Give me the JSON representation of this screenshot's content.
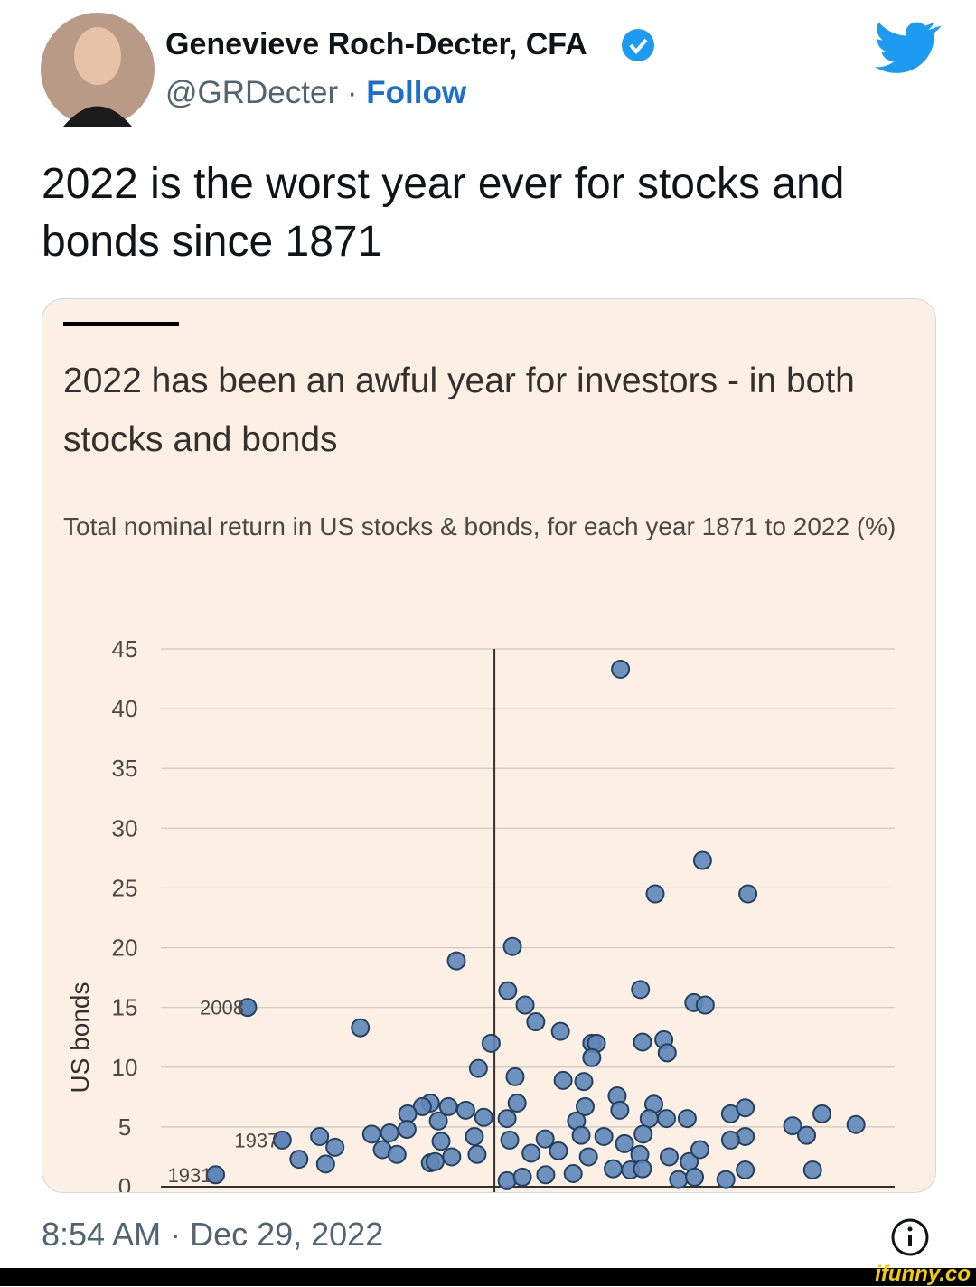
{
  "author": {
    "name": "Genevieve Roch-Decter, CFA",
    "handle": "@GRDecter",
    "separator": "·",
    "follow": "Follow"
  },
  "tweet_text": "2022 is the worst year ever for stocks and bonds since 1871",
  "timestamp": "8:54 AM · Dec 29, 2022",
  "watermark": "ifunny.co",
  "chart_data": {
    "type": "scatter",
    "title": "2022 has been an awful year for investors - in both stocks and bonds",
    "subtitle": "Total nominal return in US stocks & bonds, for each year 1871 to 2022 (%)",
    "y_label": "US bonds",
    "xlim": [
      -50,
      60
    ],
    "ylim": [
      0,
      45
    ],
    "yticks": [
      0,
      5,
      10,
      15,
      20,
      25,
      30,
      35,
      40,
      45
    ],
    "grid": true,
    "color": "#5f86b8",
    "x": [
      18.9,
      31.2,
      24.1,
      38.0,
      2.7,
      -5.7,
      21.9,
      2.0,
      4.6,
      29.9,
      31.6,
      -20.1,
      6.2,
      9.9,
      -0.5,
      14.6,
      15.3,
      22.2,
      25.4,
      25.9,
      14.6,
      -2.4,
      3.1,
      10.3,
      13.4,
      18.4,
      3.4,
      -9.6,
      -6.9,
      -10.8,
      -13.0,
      -8.4,
      -4.3,
      -1.6,
      1.9,
      13.6,
      18.8,
      23.9,
      25.8,
      28.9,
      12.3,
      23.2,
      35.4,
      37.6,
      49.1,
      54.2,
      44.7,
      46.8,
      37.6,
      35.4,
      -26.2,
      -18.4,
      -15.7,
      -13.1,
      -23.9,
      -29.3,
      -25.3,
      -16.8,
      -14.6,
      -9.6,
      -8.9,
      -6.4,
      -8.0,
      -3.0,
      -2.6,
      2.3,
      5.5,
      7.6,
      9.6,
      13.0,
      14.1,
      16.4,
      19.5,
      22.3,
      21.8,
      26.2,
      29.2,
      30.8,
      17.8,
      11.8,
      20.4,
      22.2,
      1.9,
      4.2,
      7.7,
      27.6,
      30.0,
      34.7,
      37.6,
      47.7
    ],
    "values": [
      43.3,
      27.3,
      24.5,
      24.5,
      20.1,
      18.9,
      16.5,
      16.4,
      15.2,
      15.4,
      15.2,
      13.3,
      13.8,
      13.0,
      12.0,
      12.0,
      12.0,
      12.1,
      12.3,
      11.2,
      10.8,
      9.9,
      9.2,
      8.9,
      8.8,
      7.6,
      7.0,
      7.0,
      6.7,
      6.7,
      6.1,
      5.5,
      6.4,
      5.8,
      5.7,
      6.7,
      6.4,
      6.9,
      5.7,
      5.7,
      5.5,
      5.7,
      6.1,
      6.6,
      6.1,
      5.2,
      5.1,
      4.3,
      4.2,
      3.9,
      4.2,
      4.4,
      4.5,
      4.8,
      3.3,
      2.3,
      1.9,
      3.1,
      2.7,
      2.0,
      2.1,
      2.5,
      3.8,
      4.2,
      2.7,
      3.9,
      2.8,
      4.0,
      3.0,
      4.3,
      2.5,
      4.2,
      3.6,
      4.4,
      2.7,
      2.5,
      2.1,
      3.1,
      1.5,
      1.1,
      1.4,
      1.5,
      0.5,
      0.8,
      1.0,
      0.6,
      0.8,
      0.6,
      1.4,
      1.4
    ],
    "annotations": [
      {
        "text": "2008",
        "x": -37.0,
        "y": 15.0
      },
      {
        "text": "1937",
        "x": -31.8,
        "y": 3.9
      },
      {
        "text": "1931",
        "x": -41.8,
        "y": 1.0
      }
    ]
  }
}
